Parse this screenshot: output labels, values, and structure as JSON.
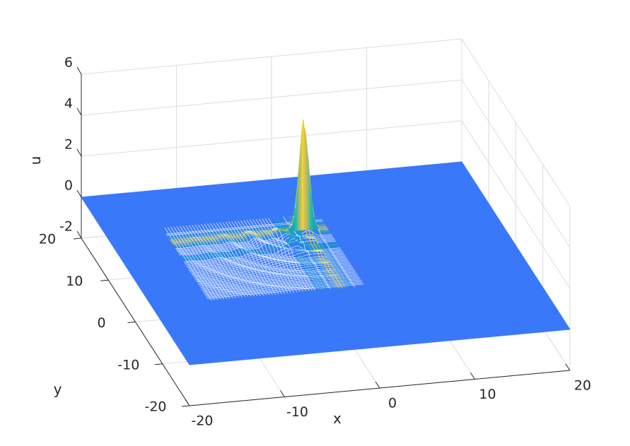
{
  "chart_data": {
    "type": "surface",
    "title": "",
    "xlabel": "x",
    "ylabel": "y",
    "zlabel": "u",
    "xlim": [
      -20,
      20
    ],
    "ylim": [
      -20,
      20
    ],
    "zlim": [
      -2,
      6
    ],
    "xticks": [
      -20,
      -10,
      0,
      10,
      20
    ],
    "yticks": [
      -20,
      -10,
      0,
      10,
      20
    ],
    "zticks": [
      -2,
      0,
      2,
      4,
      6
    ],
    "xtick_labels": [
      "-20",
      "-10",
      "0",
      "10",
      "20"
    ],
    "ytick_labels": [
      "-20",
      "-10",
      "0",
      "10",
      "20"
    ],
    "ztick_labels": [
      "-2",
      "0",
      "2",
      "4",
      "6"
    ],
    "grid": true,
    "colormap": "parula",
    "surface_base_color": "#3a78fa",
    "peak": {
      "x": 0,
      "y": 8,
      "u": 5.0
    },
    "secondary_peak": {
      "x": -2,
      "y": 4,
      "u": 1.4
    },
    "plane_level_u": 0
  }
}
